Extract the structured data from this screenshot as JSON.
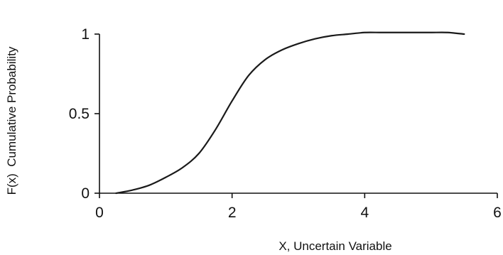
{
  "chart_data": {
    "type": "line",
    "title": "",
    "xlabel": "X, Uncertain Variable",
    "ylabel": "F(x)  Cumulative Probability",
    "xlim": [
      0,
      6
    ],
    "ylim": [
      0,
      1
    ],
    "xticks": [
      0,
      2,
      4,
      6
    ],
    "yticks": [
      0,
      0.5,
      1
    ],
    "xtick_labels": [
      "0",
      "2",
      "4",
      "6"
    ],
    "ytick_labels": [
      "0",
      "0.5",
      "1"
    ],
    "grid": false,
    "legend": "none",
    "line_color": "#1a1a1a",
    "series": [
      {
        "x": [
          0.25,
          0.5,
          0.75,
          1.0,
          1.25,
          1.5,
          1.75,
          2.0,
          2.25,
          2.5,
          2.75,
          3.0,
          3.25,
          3.5,
          3.75,
          4.0,
          4.25,
          4.5,
          4.75,
          5.0,
          5.25,
          5.5
        ],
        "values": [
          0.0,
          0.02,
          0.05,
          0.1,
          0.16,
          0.25,
          0.4,
          0.58,
          0.74,
          0.84,
          0.9,
          0.94,
          0.97,
          0.99,
          1.0,
          1.01,
          1.01,
          1.01,
          1.01,
          1.01,
          1.01,
          1.0
        ]
      }
    ]
  }
}
